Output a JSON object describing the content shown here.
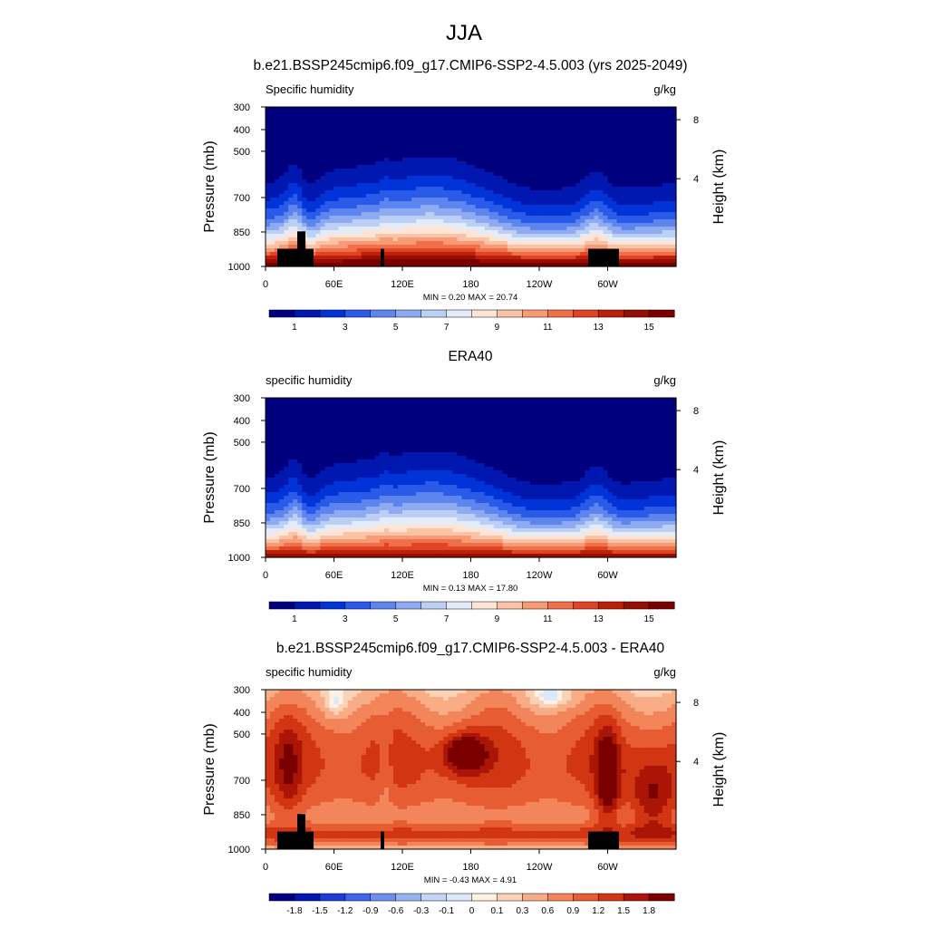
{
  "figure_title": "JJA",
  "chart_data": [
    {
      "type": "heatmap",
      "title": "b.e21.BSSP245cmip6.f09_g17.CMIP6-SSP2-4.5.003 (yrs 2025-2049)",
      "left_label": "Specific humidity",
      "right_label": "g/kg",
      "ylabel": "Pressure (mb)",
      "ylabel_right": "Height (km)",
      "x_ticks": [
        "0",
        "60E",
        "120E",
        "180",
        "120W",
        "60W"
      ],
      "y_ticks": [
        "300",
        "400",
        "500",
        "700",
        "850",
        "1000"
      ],
      "height_ticks": [
        "8",
        "4"
      ],
      "stats": "MIN =   0.20  MAX =  20.74",
      "colorbar_labels": [
        "1",
        "3",
        "5",
        "7",
        "9",
        "11",
        "13",
        "15"
      ],
      "field": "model",
      "terrain": true
    },
    {
      "type": "heatmap",
      "title": "ERA40",
      "left_label": "specific humidity",
      "right_label": "g/kg",
      "ylabel": "Pressure (mb)",
      "ylabel_right": "Height (km)",
      "x_ticks": [
        "0",
        "60E",
        "120E",
        "180",
        "120W",
        "60W"
      ],
      "y_ticks": [
        "300",
        "400",
        "500",
        "700",
        "850",
        "1000"
      ],
      "height_ticks": [
        "8",
        "4"
      ],
      "stats": "MIN =   0.13  MAX =  17.80",
      "colorbar_labels": [
        "1",
        "3",
        "5",
        "7",
        "9",
        "11",
        "13",
        "15"
      ],
      "field": "obs",
      "terrain": false
    },
    {
      "type": "heatmap",
      "title": "b.e21.BSSP245cmip6.f09_g17.CMIP6-SSP2-4.5.003 - ERA40",
      "left_label": "specific humidity",
      "right_label": "g/kg",
      "ylabel": "Pressure (mb)",
      "ylabel_right": "Height (km)",
      "x_ticks": [
        "0",
        "60E",
        "120E",
        "180",
        "120W",
        "60W"
      ],
      "y_ticks": [
        "300",
        "400",
        "500",
        "700",
        "850",
        "1000"
      ],
      "height_ticks": [
        "8",
        "4"
      ],
      "stats": "MIN =  -0.43  MAX =   4.91",
      "colorbar_labels": [
        "-1.8",
        "-1.5",
        "-1.2",
        "-0.9",
        "-0.6",
        "-0.3",
        "-0.1",
        "0",
        "0.1",
        "0.3",
        "0.6",
        "0.9",
        "1.2",
        "1.5",
        "1.8"
      ],
      "field": "diff",
      "terrain": true
    }
  ],
  "colors": {
    "levels": [
      "#00007f",
      "#0018b0",
      "#0033d8",
      "#2a5ae8",
      "#5c86ee",
      "#8eaaf2",
      "#bcd0f6",
      "#e4ecfa",
      "#fde4d4",
      "#fbc3a6",
      "#f79b76",
      "#f0704b",
      "#e04424",
      "#bd2009",
      "#960e00",
      "#7a0000"
    ],
    "diff_levels": [
      "#00007f",
      "#0018b0",
      "#1a3cd8",
      "#3c66e6",
      "#6a8fee",
      "#97b3f3",
      "#c2d6f7",
      "#dde8fb",
      "#fff1e4",
      "#fbd2b6",
      "#f8ad87",
      "#f3855a",
      "#e85c33",
      "#d13512",
      "#aa1505",
      "#7a0000"
    ],
    "terrain": "#000000"
  }
}
